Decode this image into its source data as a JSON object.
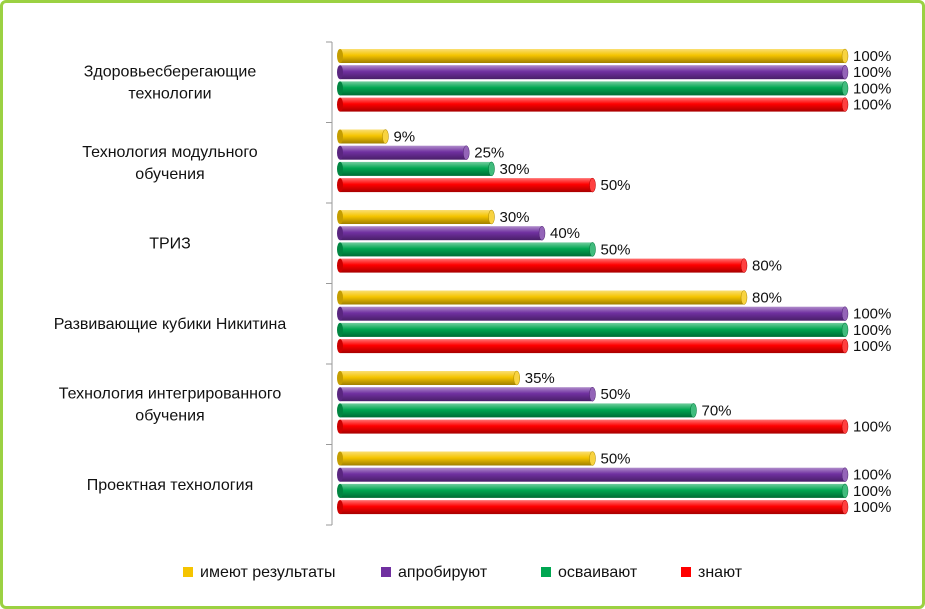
{
  "chart_data": {
    "type": "bar",
    "orientation": "horizontal",
    "style": "3d-cylinder",
    "categories": [
      [
        "Здоровьесберегающие",
        "технологии"
      ],
      [
        "Технология модульного",
        "обучения"
      ],
      [
        "ТРИЗ"
      ],
      [
        "Развивающие кубики Никитина"
      ],
      [
        "Технология интегрированного",
        "обучения"
      ],
      [
        "Проектная технология"
      ]
    ],
    "series": [
      {
        "name": "имеют результаты",
        "color": "#f5c400",
        "values": [
          100,
          9,
          30,
          80,
          35,
          50
        ]
      },
      {
        "name": "апробируют",
        "color": "#7030a0",
        "values": [
          100,
          25,
          40,
          100,
          50,
          100
        ]
      },
      {
        "name": "осваивают",
        "color": "#00a651",
        "values": [
          100,
          30,
          50,
          100,
          70,
          100
        ]
      },
      {
        "name": "знают",
        "color": "#ff0000",
        "values": [
          100,
          50,
          80,
          100,
          100,
          100
        ]
      }
    ],
    "value_suffix": "%",
    "xlim": [
      0,
      100
    ],
    "grid": false,
    "legend_position": "bottom"
  }
}
